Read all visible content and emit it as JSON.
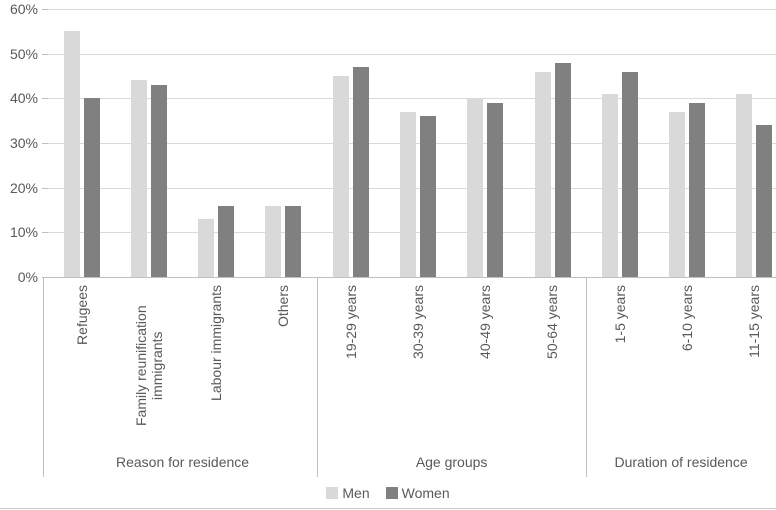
{
  "chart_data": {
    "type": "bar",
    "title": "",
    "xlabel": "",
    "ylabel": "",
    "ylim": [
      0,
      60
    ],
    "ytick_step": 10,
    "ytick_labels": [
      "0%",
      "10%",
      "20%",
      "30%",
      "40%",
      "50%",
      "60%"
    ],
    "grid": true,
    "legend_position": "bottom",
    "groups": [
      {
        "label": "Reason for residence",
        "categories": [
          "Refugees",
          "Family reunification immigrants",
          "Labour immigrants",
          "Others"
        ]
      },
      {
        "label": "Age groups",
        "categories": [
          "19-29 years",
          "30-39 years",
          "40-49 years",
          "50-64 years"
        ]
      },
      {
        "label": "Duration of residence",
        "categories": [
          "1-5 years",
          "6-10 years",
          "11-15 years"
        ]
      }
    ],
    "series": [
      {
        "name": "Men",
        "color": "#d9d9d9",
        "values": [
          55,
          44,
          13,
          16,
          45,
          37,
          40,
          46,
          41,
          37,
          41
        ]
      },
      {
        "name": "Women",
        "color": "#808080",
        "values": [
          40,
          43,
          16,
          16,
          47,
          36,
          39,
          48,
          46,
          39,
          34
        ]
      }
    ],
    "colors": {
      "gridline": "#d9d9d9",
      "axis_line": "#bfbfbf",
      "text": "#595959"
    }
  }
}
